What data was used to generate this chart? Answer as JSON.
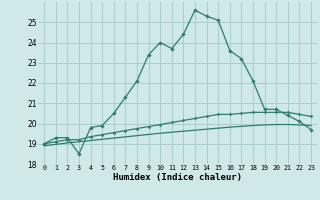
{
  "title": "",
  "xlabel": "Humidex (Indice chaleur)",
  "background_color": "#cfe8e8",
  "grid_color": "#aacccc",
  "line_color": "#2e7d6e",
  "xlim": [
    -0.5,
    23.5
  ],
  "ylim": [
    18,
    26
  ],
  "xticks": [
    0,
    1,
    2,
    3,
    4,
    5,
    6,
    7,
    8,
    9,
    10,
    11,
    12,
    13,
    14,
    15,
    16,
    17,
    18,
    19,
    20,
    21,
    22,
    23
  ],
  "yticks": [
    18,
    19,
    20,
    21,
    22,
    23,
    24,
    25
  ],
  "line1_x": [
    0,
    1,
    2,
    3,
    4,
    5,
    6,
    7,
    8,
    9,
    10,
    11,
    12,
    13,
    14,
    15,
    16,
    17,
    18,
    19,
    20,
    21,
    22,
    23
  ],
  "line1_y": [
    19.0,
    19.3,
    19.3,
    18.5,
    19.8,
    19.9,
    20.5,
    21.3,
    22.1,
    23.4,
    24.0,
    23.7,
    24.4,
    25.6,
    25.3,
    25.1,
    23.6,
    23.2,
    22.1,
    20.7,
    20.7,
    20.4,
    20.1,
    19.7
  ],
  "line2_x": [
    0,
    1,
    2,
    3,
    4,
    5,
    6,
    7,
    8,
    9,
    10,
    11,
    12,
    13,
    14,
    15,
    16,
    17,
    18,
    19,
    20,
    21,
    22,
    23
  ],
  "line2_y": [
    19.0,
    19.1,
    19.2,
    19.2,
    19.35,
    19.45,
    19.55,
    19.65,
    19.75,
    19.85,
    19.95,
    20.05,
    20.15,
    20.25,
    20.35,
    20.45,
    20.45,
    20.5,
    20.55,
    20.55,
    20.55,
    20.55,
    20.45,
    20.35
  ],
  "line3_x": [
    0,
    1,
    2,
    3,
    4,
    5,
    6,
    7,
    8,
    9,
    10,
    11,
    12,
    13,
    14,
    15,
    16,
    17,
    18,
    19,
    20,
    21,
    22,
    23
  ],
  "line3_y": [
    18.9,
    18.97,
    19.04,
    19.1,
    19.16,
    19.22,
    19.28,
    19.34,
    19.4,
    19.46,
    19.52,
    19.57,
    19.62,
    19.67,
    19.72,
    19.77,
    19.82,
    19.86,
    19.9,
    19.93,
    19.95,
    19.95,
    19.93,
    19.9
  ]
}
